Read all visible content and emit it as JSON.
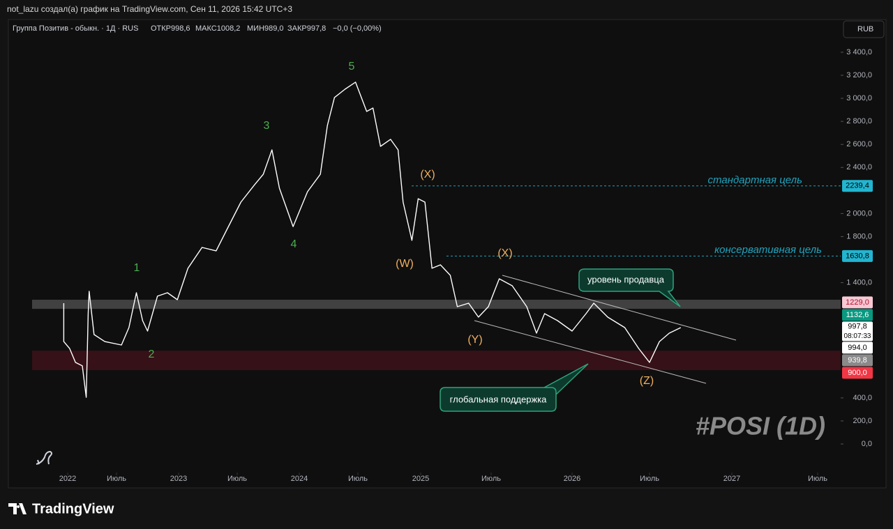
{
  "header": {
    "text": "not_lazu создал(а) график на TradingView.com, Сен 11, 2026 15:42 UTC+3"
  },
  "legend": {
    "symbol": "Группа Позитив - обыкн. · 1Д · RUS",
    "open": "ОТКР998,6",
    "high": "МАКС1008,2",
    "low": "МИН989,0",
    "close": "ЗАКР997,8",
    "change": "−0,0 (−0,00%)"
  },
  "currency": "RUB",
  "brand": "TradingView",
  "chart_data": {
    "type": "line",
    "color": "#ffffff",
    "x": [
      2021.96,
      2021.96,
      2022.02,
      2022.08,
      2022.15,
      2022.19,
      2022.21,
      2022.22,
      2022.27,
      2022.38,
      2022.54,
      2022.6,
      2022.66,
      2022.71,
      2022.75,
      2022.83,
      2022.91,
      2022.99,
      2023.08,
      2023.2,
      2023.32,
      2023.41,
      2023.53,
      2023.64,
      2023.71,
      2023.78,
      2023.84,
      2023.89,
      2023.95,
      2024.07,
      2024.18,
      2024.24,
      2024.3,
      2024.39,
      2024.48,
      2024.57,
      2024.62,
      2024.68,
      2024.76,
      2024.82,
      2024.86,
      2024.93,
      2024.98,
      2025.03,
      2025.08,
      2025.14,
      2025.21,
      2025.26,
      2025.34,
      2025.41,
      2025.48,
      2025.55,
      2025.63,
      2025.72,
      2025.78,
      2025.83,
      2025.91,
      2026.0,
      2026.09,
      2026.14,
      2026.23,
      2026.34,
      2026.43,
      2026.5,
      2026.56,
      2026.62,
      2026.69
    ],
    "values": [
      1222,
      889,
      829,
      708,
      678,
      405,
      1131,
      1325,
      950,
      889,
      859,
      1010,
      1313,
      1071,
      980,
      1283,
      1313,
      1252,
      1525,
      1706,
      1676,
      1857,
      2099,
      2250,
      2341,
      2553,
      2220,
      2069,
      1887,
      2190,
      2341,
      2765,
      3007,
      3079,
      3140,
      2886,
      2916,
      2583,
      2644,
      2553,
      2099,
      1767,
      2129,
      2099,
      1525,
      1555,
      1464,
      1192,
      1222,
      1101,
      1192,
      1434,
      1373,
      1192,
      962,
      1131,
      1071,
      980,
      1131,
      1222,
      1101,
      1010,
      829,
      708,
      889,
      962,
      1010
    ],
    "ylim": [
      -381,
      3684
    ],
    "yticks": [
      {
        "value": 3400,
        "label": "3 400,0"
      },
      {
        "value": 3200,
        "label": "3 200,0"
      },
      {
        "value": 3000,
        "label": "3 000,0"
      },
      {
        "value": 2800,
        "label": "2 800,0"
      },
      {
        "value": 2600,
        "label": "2 600,0"
      },
      {
        "value": 2400,
        "label": "2 400,0"
      },
      {
        "value": 2000,
        "label": "2 000,0"
      },
      {
        "value": 1800,
        "label": "1 800,0"
      },
      {
        "value": 1400,
        "label": "1 400,0"
      },
      {
        "value": 400,
        "label": "400,0"
      },
      {
        "value": 200,
        "label": "200,0"
      },
      {
        "value": 0,
        "label": "0,0"
      }
    ],
    "xlim": [
      2021.47,
      2027.63
    ],
    "xticks": [
      {
        "value": 2022,
        "label": "2022"
      },
      {
        "value": 2022.5,
        "label": "Июль"
      },
      {
        "value": 2023,
        "label": "2023"
      },
      {
        "value": 2023.5,
        "label": "Июль"
      },
      {
        "value": 2024,
        "label": "2024"
      },
      {
        "value": 2024.5,
        "label": "Июль"
      },
      {
        "value": 2025,
        "label": "2025"
      },
      {
        "value": 2025.5,
        "label": "Июль"
      },
      {
        "value": 2026,
        "label": "2026"
      },
      {
        "value": 2026.5,
        "label": "Июль"
      },
      {
        "value": 2027,
        "label": "2027"
      },
      {
        "value": 2027.5,
        "label": "Июль"
      }
    ],
    "zones": [
      {
        "from": 1173,
        "to": 1252,
        "color": "#4a4a4a"
      },
      {
        "from": 641,
        "to": 810,
        "color": "#3d1219"
      }
    ],
    "price_labels": [
      {
        "value": 2239.4,
        "label": "2239,4",
        "color": "#22b5d0",
        "text_color": "#000000",
        "line": "dashed"
      },
      {
        "value": 1630.8,
        "label": "1630,8",
        "color": "#22b5d0",
        "text_color": "#000000",
        "line": "dashed"
      },
      {
        "value": 1229,
        "label": "1229,0",
        "color": "#f8c8d4",
        "text_color": "#b0102a"
      },
      {
        "value": 1132.6,
        "label": "1132,6",
        "color": "#089981",
        "text_color": "#ffffff"
      },
      {
        "value": 997.8,
        "label": "997,8",
        "sublabel": "08:07:33",
        "color": "#ffffff",
        "text_color": "#000000"
      },
      {
        "value": 994,
        "label": "994,0",
        "color": "#ffffff",
        "text_color": "#000000"
      },
      {
        "value": 939.8,
        "label": "939,8",
        "color": "#8a8a8a",
        "text_color": "#ffffff"
      },
      {
        "value": 900,
        "label": "900,0",
        "color": "#f23645",
        "text_color": "#ffffff"
      }
    ],
    "target_labels": [
      "стандартная цель",
      "консервативная цель"
    ],
    "waves": [
      "1",
      "2",
      "3",
      "4",
      "5"
    ],
    "corrective_waves": [
      "(W)",
      "(X)",
      "(Y)",
      "(X)",
      "(Z)"
    ],
    "callouts": [
      "уровень продавца",
      "глобальная поддержка"
    ],
    "watermark": "#POSI (1D)"
  }
}
